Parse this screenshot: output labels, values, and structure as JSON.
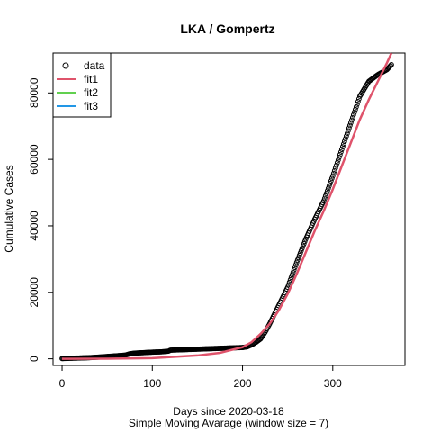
{
  "chart_data": {
    "type": "scatter",
    "title": "LKA / Gompertz",
    "xlabel": "Days since 2020-03-18",
    "xlabel2": "Simple Moving Avarage (window size = 7)",
    "ylabel": "Cumulative Cases",
    "xlim": [
      -10,
      380
    ],
    "ylim": [
      -2000,
      92000
    ],
    "xticks": [
      0,
      100,
      200,
      300
    ],
    "yticks": [
      0,
      20000,
      40000,
      60000,
      80000
    ],
    "xtick_labels": [
      "0",
      "100",
      "200",
      "300"
    ],
    "ytick_labels": [
      "0",
      "20000",
      "40000",
      "60000",
      "80000"
    ],
    "grid": false,
    "legend_position": "top-left",
    "legend": [
      {
        "name": "data",
        "kind": "point",
        "color": "#000000"
      },
      {
        "name": "fit1",
        "kind": "line",
        "color": "#DF536B"
      },
      {
        "name": "fit2",
        "kind": "line",
        "color": "#61D04F"
      },
      {
        "name": "fit3",
        "kind": "line",
        "color": "#2297E6"
      }
    ],
    "data_points": {
      "name": "data",
      "x": [
        0,
        10,
        20,
        30,
        40,
        50,
        60,
        70,
        75,
        80,
        90,
        100,
        110,
        118,
        120,
        130,
        140,
        150,
        160,
        170,
        180,
        190,
        200,
        205,
        210,
        215,
        220,
        225,
        230,
        240,
        250,
        260,
        270,
        280,
        290,
        300,
        310,
        320,
        330,
        340,
        350,
        360,
        365
      ],
      "y": [
        70,
        180,
        250,
        350,
        500,
        700,
        900,
        1100,
        1500,
        1700,
        1850,
        2000,
        2100,
        2300,
        2600,
        2700,
        2800,
        2900,
        3000,
        3100,
        3200,
        3300,
        3400,
        3600,
        4200,
        5000,
        6000,
        8000,
        10500,
        16000,
        21500,
        29000,
        36000,
        42000,
        47500,
        55000,
        63000,
        71000,
        79000,
        83500,
        85500,
        87000,
        88500
      ]
    },
    "fit1": {
      "name": "fit1",
      "color": "#DF536B",
      "x": [
        0,
        50,
        100,
        150,
        175,
        200,
        210,
        220,
        230,
        240,
        250,
        260,
        270,
        280,
        290,
        300,
        310,
        320,
        330,
        340,
        350,
        360,
        365
      ],
      "y": [
        0,
        30,
        200,
        1000,
        1800,
        3500,
        5000,
        7500,
        10500,
        14500,
        19500,
        25500,
        32000,
        38500,
        44500,
        51000,
        58000,
        65000,
        72000,
        78000,
        83500,
        89000,
        92000
      ]
    }
  }
}
